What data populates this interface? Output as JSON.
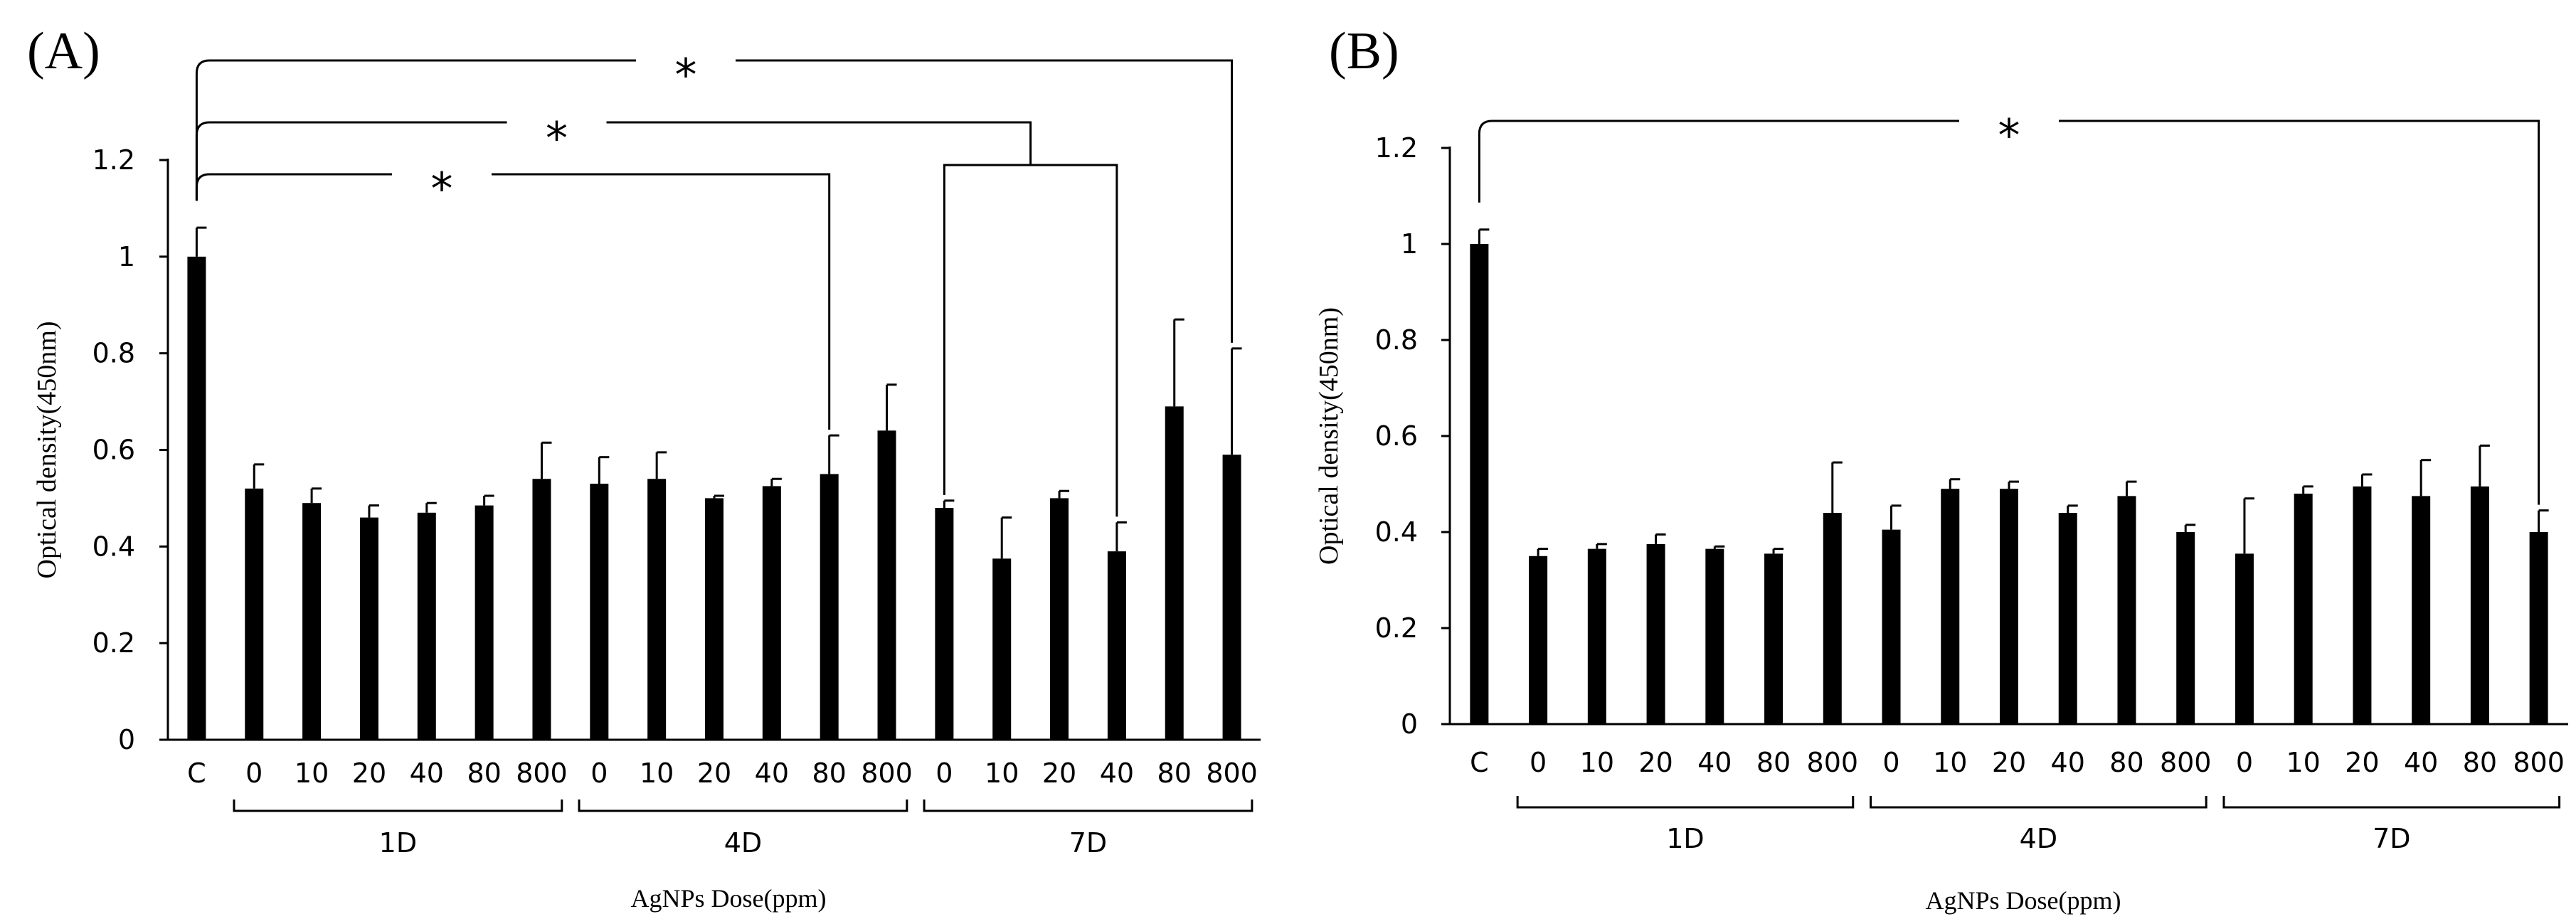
{
  "figure": {
    "colors": {
      "bar": "#000000",
      "axis": "#000000",
      "background": "#ffffff"
    }
  },
  "chart_data": [
    {
      "panel_label": "(A)",
      "type": "bar",
      "ylabel": "Optical density(450nm)",
      "xlabel": "AgNPs Dose(ppm)",
      "ylim": [
        0,
        1.2
      ],
      "yticks": [
        "0",
        "0.2",
        "0.4",
        "0.6",
        "0.8",
        "1",
        "1.2"
      ],
      "grid": false,
      "categories": [
        "C",
        "0",
        "10",
        "20",
        "40",
        "80",
        "800",
        "0",
        "10",
        "20",
        "40",
        "80",
        "800",
        "0",
        "10",
        "20",
        "40",
        "80",
        "800"
      ],
      "values": [
        1.0,
        0.52,
        0.49,
        0.46,
        0.47,
        0.485,
        0.54,
        0.53,
        0.54,
        0.5,
        0.525,
        0.55,
        0.64,
        0.48,
        0.375,
        0.5,
        0.39,
        0.69,
        0.59
      ],
      "errors": [
        0.06,
        0.05,
        0.03,
        0.025,
        0.02,
        0.02,
        0.075,
        0.055,
        0.055,
        0.005,
        0.015,
        0.08,
        0.095,
        0.015,
        0.085,
        0.015,
        0.06,
        0.18,
        0.22
      ],
      "groups": [
        {
          "label": "1D",
          "start": 1,
          "end": 6
        },
        {
          "label": "4D",
          "start": 7,
          "end": 12
        },
        {
          "label": "7D",
          "start": 13,
          "end": 18
        }
      ],
      "significance_brackets": [
        {
          "label": "*",
          "from": 0,
          "to": [
            18
          ]
        },
        {
          "label": "*",
          "from": 0,
          "to": [
            13,
            16
          ]
        },
        {
          "label": "*",
          "from": 0,
          "to": [
            11
          ]
        }
      ]
    },
    {
      "panel_label": "(B)",
      "type": "bar",
      "ylabel": "Optical density(450nm)",
      "xlabel": "AgNPs Dose(ppm)",
      "ylim": [
        0,
        1.2
      ],
      "yticks": [
        "0",
        "0.2",
        "0.4",
        "0.6",
        "0.8",
        "1",
        "1.2"
      ],
      "grid": false,
      "categories": [
        "C",
        "0",
        "10",
        "20",
        "40",
        "80",
        "800",
        "0",
        "10",
        "20",
        "40",
        "80",
        "800",
        "0",
        "10",
        "20",
        "40",
        "80",
        "800"
      ],
      "values": [
        1.0,
        0.35,
        0.365,
        0.375,
        0.365,
        0.355,
        0.44,
        0.405,
        0.49,
        0.49,
        0.44,
        0.475,
        0.4,
        0.355,
        0.48,
        0.495,
        0.475,
        0.495,
        0.4
      ],
      "errors": [
        0.03,
        0.015,
        0.01,
        0.02,
        0.005,
        0.01,
        0.105,
        0.05,
        0.02,
        0.015,
        0.015,
        0.03,
        0.015,
        0.115,
        0.015,
        0.025,
        0.075,
        0.085,
        0.045
      ],
      "groups": [
        {
          "label": "1D",
          "start": 1,
          "end": 6
        },
        {
          "label": "4D",
          "start": 7,
          "end": 12
        },
        {
          "label": "7D",
          "start": 13,
          "end": 18
        }
      ],
      "significance_brackets": [
        {
          "label": "*",
          "from": 0,
          "to": [
            18
          ]
        }
      ]
    }
  ]
}
